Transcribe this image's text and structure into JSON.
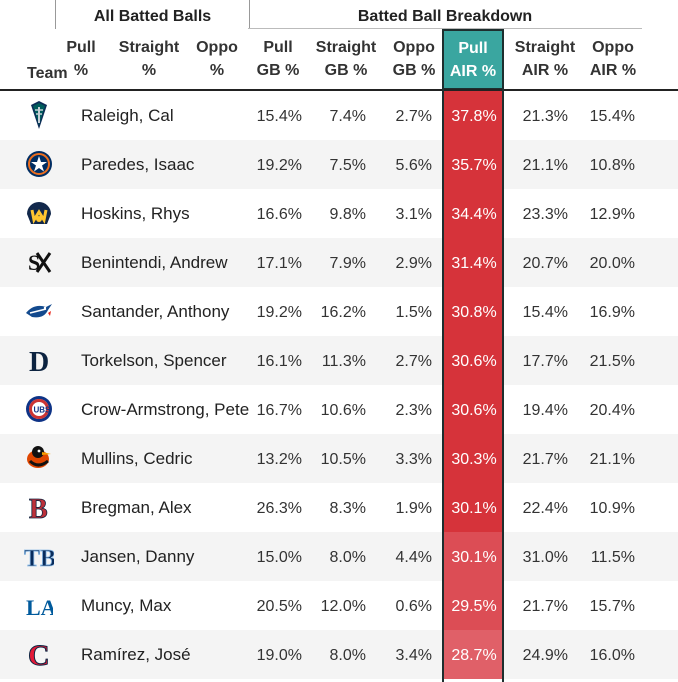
{
  "groups": {
    "left": "All Batted Balls",
    "right": "Batted Ball Breakdown"
  },
  "headers": {
    "team": "Team",
    "col1": [
      "Pull",
      "%"
    ],
    "col2": [
      "Straight",
      "%"
    ],
    "col3": [
      "Oppo",
      "%"
    ],
    "col4": [
      "Pull",
      "GB %"
    ],
    "col5": [
      "Straight",
      "GB %"
    ],
    "col6": [
      "Oppo",
      "GB %"
    ],
    "col7": [
      "Pull",
      "AIR %"
    ],
    "col8": [
      "Straight",
      "AIR %"
    ],
    "col9": [
      "Oppo",
      "AIR %"
    ]
  },
  "colors": {
    "highlight_header": "#3aa6a0",
    "highlight_cells": "#d6333a"
  },
  "rows": [
    {
      "team_icon": "mariners-logo-icon",
      "name": "Raleigh, Cal",
      "pull_gb": "15.4%",
      "straight_gb": "7.4%",
      "oppo_gb": "2.7%",
      "pull_air": "37.8%",
      "straight_air": "21.3%",
      "oppo_air": "15.4%"
    },
    {
      "team_icon": "astros-logo-icon",
      "name": "Paredes, Isaac",
      "pull_gb": "19.2%",
      "straight_gb": "7.5%",
      "oppo_gb": "5.6%",
      "pull_air": "35.7%",
      "straight_air": "21.1%",
      "oppo_air": "10.8%"
    },
    {
      "team_icon": "brewers-logo-icon",
      "name": "Hoskins, Rhys",
      "pull_gb": "16.6%",
      "straight_gb": "9.8%",
      "oppo_gb": "3.1%",
      "pull_air": "34.4%",
      "straight_air": "23.3%",
      "oppo_air": "12.9%"
    },
    {
      "team_icon": "white-sox-logo-icon",
      "name": "Benintendi, Andrew",
      "pull_gb": "17.1%",
      "straight_gb": "7.9%",
      "oppo_gb": "2.9%",
      "pull_air": "31.4%",
      "straight_air": "20.7%",
      "oppo_air": "20.0%"
    },
    {
      "team_icon": "blue-jays-logo-icon",
      "name": "Santander, Anthony",
      "pull_gb": "19.2%",
      "straight_gb": "16.2%",
      "oppo_gb": "1.5%",
      "pull_air": "30.8%",
      "straight_air": "15.4%",
      "oppo_air": "16.9%"
    },
    {
      "team_icon": "tigers-logo-icon",
      "name": "Torkelson, Spencer",
      "pull_gb": "16.1%",
      "straight_gb": "11.3%",
      "oppo_gb": "2.7%",
      "pull_air": "30.6%",
      "straight_air": "17.7%",
      "oppo_air": "21.5%"
    },
    {
      "team_icon": "cubs-logo-icon",
      "name": "Crow-Armstrong, Pete",
      "pull_gb": "16.7%",
      "straight_gb": "10.6%",
      "oppo_gb": "2.3%",
      "pull_air": "30.6%",
      "straight_air": "19.4%",
      "oppo_air": "20.4%"
    },
    {
      "team_icon": "orioles-logo-icon",
      "name": "Mullins, Cedric",
      "pull_gb": "13.2%",
      "straight_gb": "10.5%",
      "oppo_gb": "3.3%",
      "pull_air": "30.3%",
      "straight_air": "21.7%",
      "oppo_air": "21.1%"
    },
    {
      "team_icon": "red-sox-logo-icon",
      "name": "Bregman, Alex",
      "pull_gb": "26.3%",
      "straight_gb": "8.3%",
      "oppo_gb": "1.9%",
      "pull_air": "30.1%",
      "straight_air": "22.4%",
      "oppo_air": "10.9%"
    },
    {
      "team_icon": "rays-logo-icon",
      "name": "Jansen, Danny",
      "pull_gb": "15.0%",
      "straight_gb": "8.0%",
      "oppo_gb": "4.4%",
      "pull_air": "30.1%",
      "straight_air": "31.0%",
      "oppo_air": "11.5%"
    },
    {
      "team_icon": "dodgers-logo-icon",
      "name": "Muncy, Max",
      "pull_gb": "20.5%",
      "straight_gb": "12.0%",
      "oppo_gb": "0.6%",
      "pull_air": "29.5%",
      "straight_air": "21.7%",
      "oppo_air": "15.7%"
    },
    {
      "team_icon": "guardians-logo-icon",
      "name": "Ramírez, José",
      "pull_gb": "19.0%",
      "straight_gb": "8.0%",
      "oppo_gb": "3.4%",
      "pull_air": "28.7%",
      "straight_air": "24.9%",
      "oppo_air": "16.0%"
    }
  ]
}
